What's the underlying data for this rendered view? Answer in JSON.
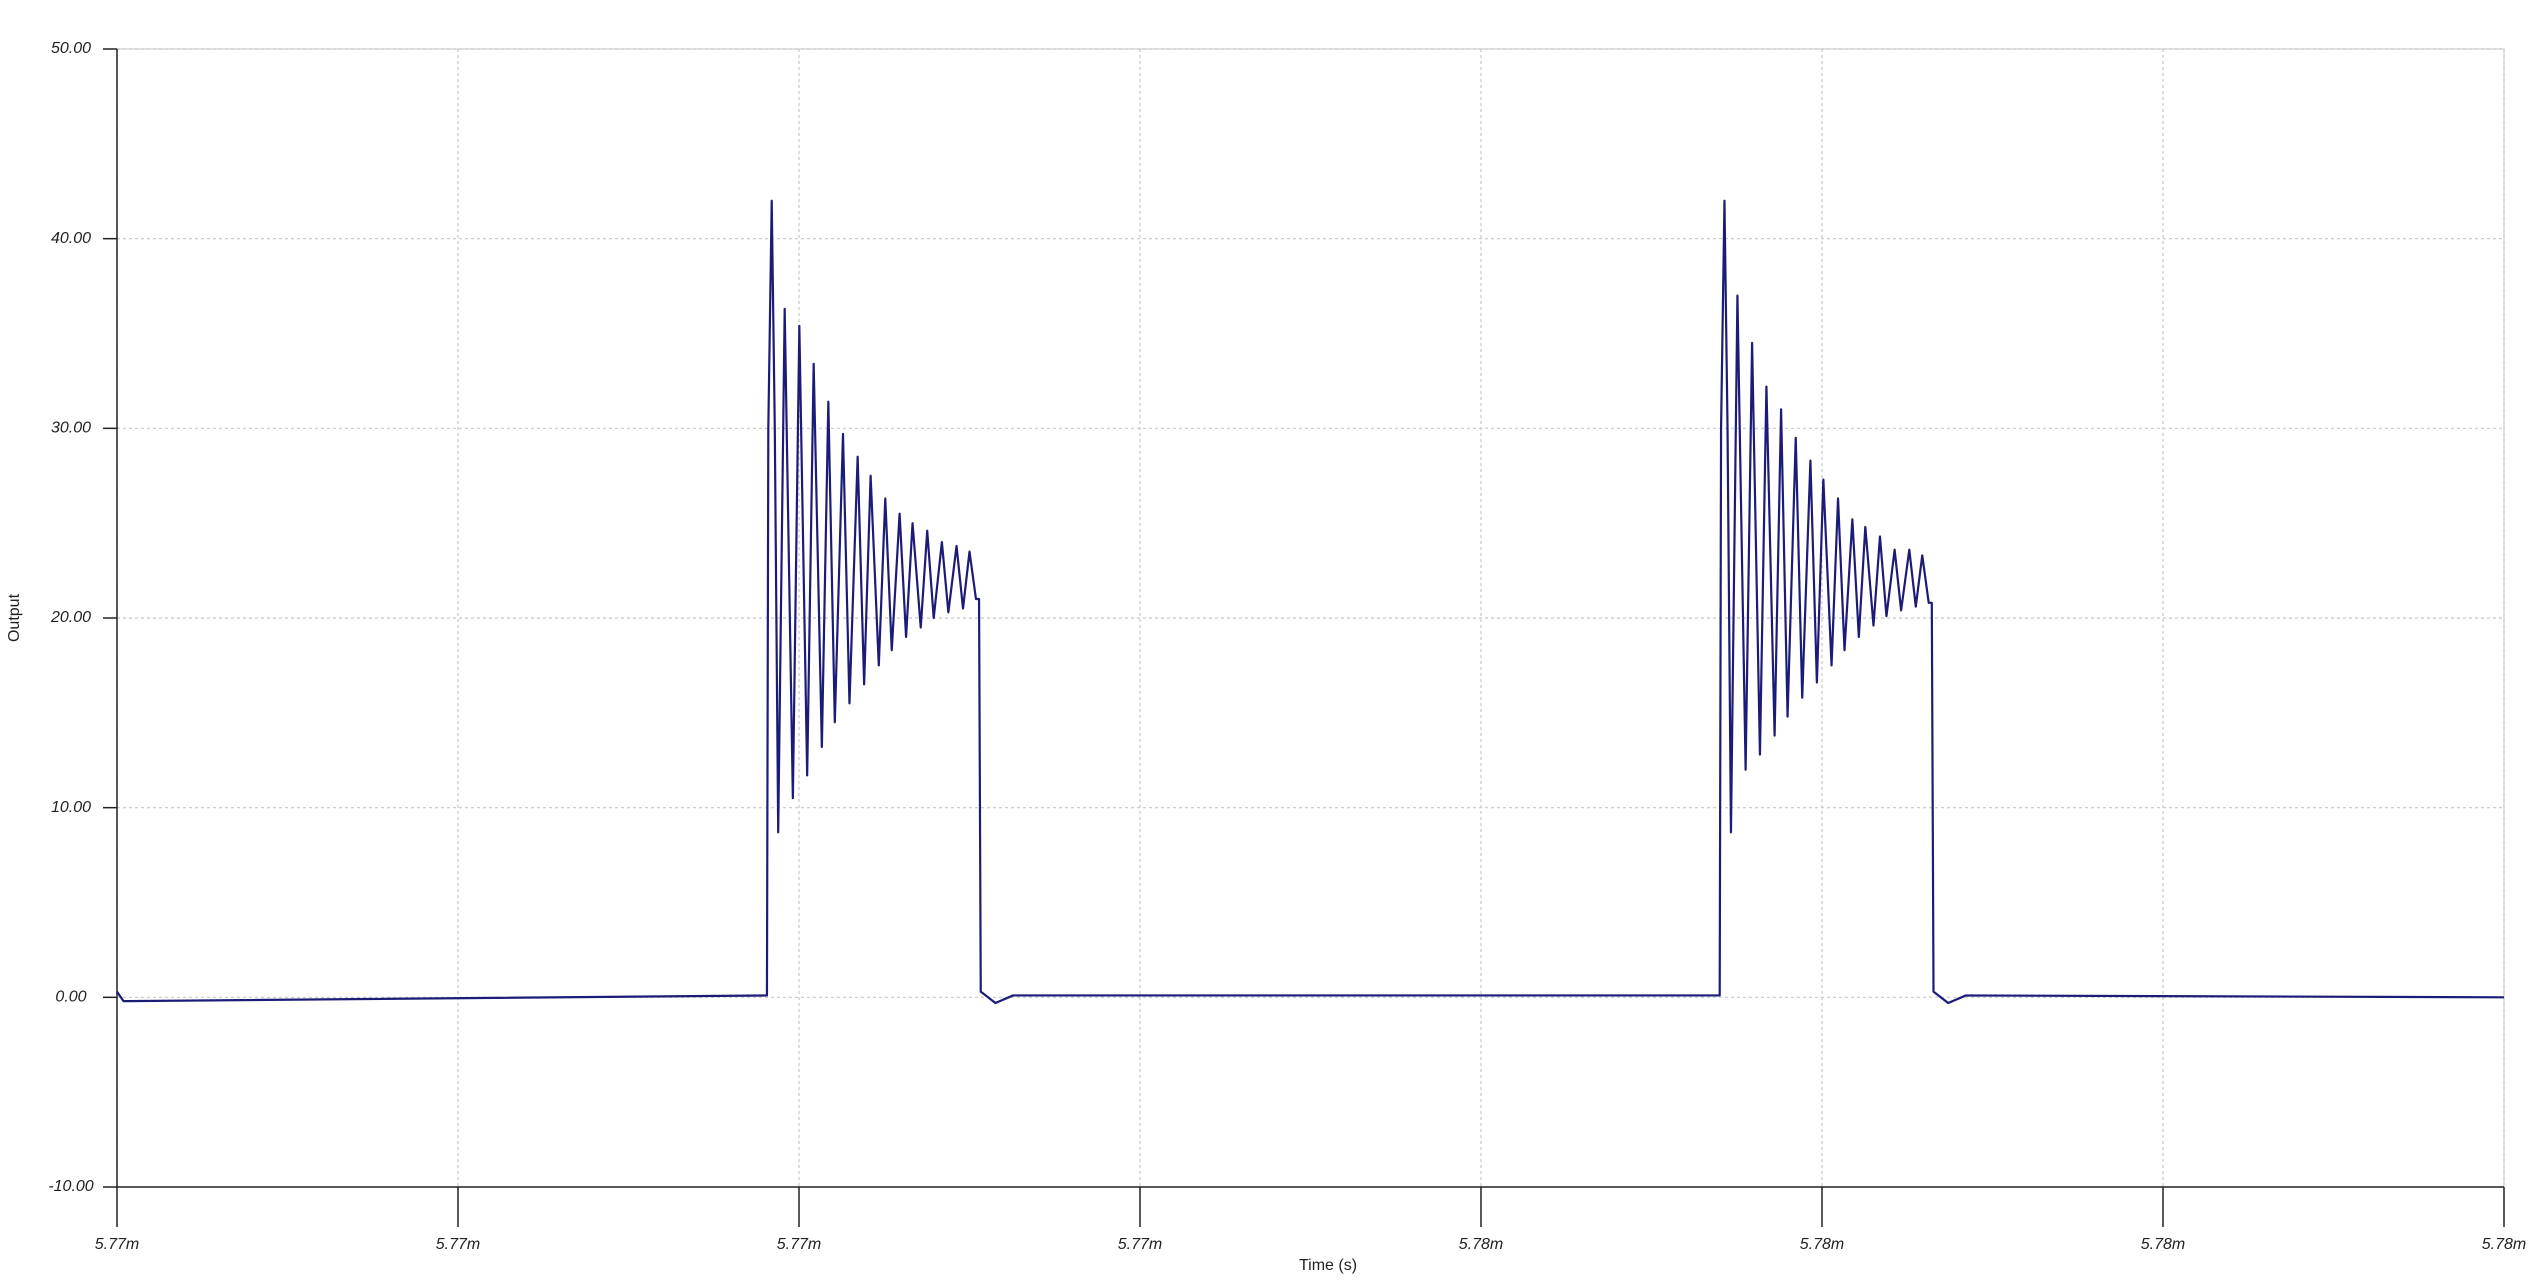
{
  "chart_data": {
    "type": "line",
    "xlabel": "Time (s)",
    "ylabel": "Output",
    "xlim": [
      5.771,
      5.778
    ],
    "ylim": [
      -10,
      50
    ],
    "xticks": [
      {
        "value": 5.771,
        "label": "5.77m"
      },
      {
        "value": 5.772,
        "label": "5.77m"
      },
      {
        "value": 5.773,
        "label": "5.77m"
      },
      {
        "value": 5.774,
        "label": "5.77m"
      },
      {
        "value": 5.775,
        "label": "5.78m"
      },
      {
        "value": 5.776,
        "label": "5.78m"
      },
      {
        "value": 5.777,
        "label": "5.78m"
      },
      {
        "value": 5.778,
        "label": "5.78m"
      }
    ],
    "yticks": [
      {
        "value": -10,
        "label": "-10.00"
      },
      {
        "value": 0,
        "label": "0.00"
      },
      {
        "value": 10,
        "label": "10.00"
      },
      {
        "value": 20,
        "label": "20.00"
      },
      {
        "value": 30,
        "label": "30.00"
      },
      {
        "value": 40,
        "label": "40.00"
      },
      {
        "value": 50,
        "label": "50.00"
      }
    ],
    "grid": true,
    "series": [
      {
        "color": "#1c1c78",
        "x": [
          5.771,
          5.771019,
          5.772906,
          5.77291,
          5.77292,
          5.772929,
          5.772939,
          5.772958,
          5.772982,
          5.773001,
          5.773024,
          5.773043,
          5.773067,
          5.773086,
          5.773105,
          5.773129,
          5.773148,
          5.773172,
          5.773191,
          5.77321,
          5.773234,
          5.773253,
          5.773272,
          5.773295,
          5.773314,
          5.773333,
          5.773357,
          5.773376,
          5.773395,
          5.773419,
          5.773438,
          5.773462,
          5.773481,
          5.7735,
          5.773519,
          5.773528,
          5.773533,
          5.773576,
          5.773628,
          5.7757,
          5.775704,
          5.775714,
          5.775723,
          5.775733,
          5.775752,
          5.775776,
          5.775795,
          5.775818,
          5.775837,
          5.775861,
          5.77588,
          5.775899,
          5.775923,
          5.775942,
          5.775966,
          5.775985,
          5.776004,
          5.776028,
          5.776047,
          5.776066,
          5.776089,
          5.776108,
          5.776127,
          5.776151,
          5.77617,
          5.776189,
          5.776213,
          5.776232,
          5.776256,
          5.776275,
          5.776294,
          5.776313,
          5.776322,
          5.776327,
          5.77637,
          5.776422,
          5.778
        ],
        "values": [
          0.3,
          -0.2,
          0.1,
          30,
          42,
          30,
          8.7,
          36.3,
          10.5,
          35.4,
          11.7,
          33.4,
          13.2,
          31.4,
          14.5,
          29.7,
          15.5,
          28.5,
          16.5,
          27.5,
          17.5,
          26.3,
          18.3,
          25.5,
          19.0,
          25.0,
          19.5,
          24.6,
          20.0,
          24.0,
          20.3,
          23.8,
          20.5,
          23.5,
          21.0,
          21.0,
          0.3,
          -0.3,
          0.1,
          0.1,
          30,
          42,
          30,
          8.7,
          37.0,
          12.0,
          34.5,
          12.8,
          32.2,
          13.8,
          31.0,
          14.8,
          29.5,
          15.8,
          28.3,
          16.6,
          27.3,
          17.5,
          26.3,
          18.3,
          25.2,
          19.0,
          24.8,
          19.6,
          24.3,
          20.1,
          23.6,
          20.4,
          23.6,
          20.6,
          23.3,
          20.8,
          20.8,
          0.3,
          -0.3,
          0.1,
          0.0
        ]
      }
    ]
  }
}
